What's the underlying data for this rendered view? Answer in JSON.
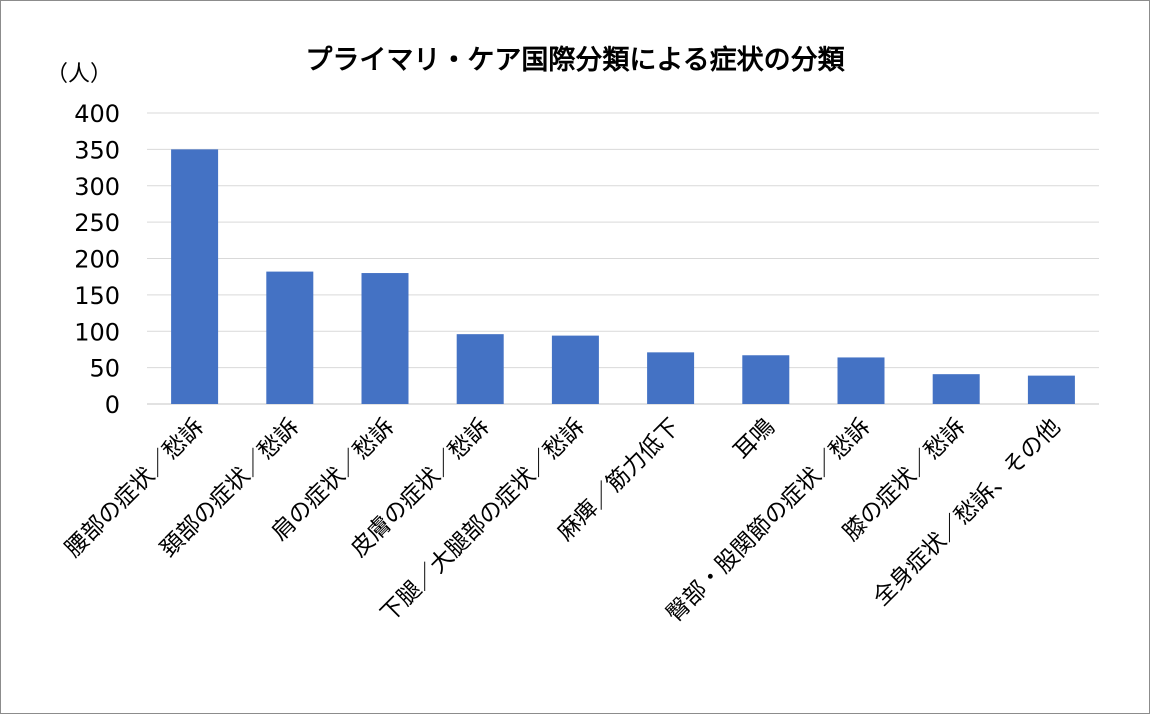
{
  "chart_data": {
    "type": "bar",
    "title": "プライマリ・ケア国際分類による症状の分類",
    "ylabel": "（人）",
    "xlabel": "",
    "ylim": [
      0,
      400
    ],
    "yticks": [
      0,
      50,
      100,
      150,
      200,
      250,
      300,
      350,
      400
    ],
    "categories": [
      "腰部の症状／愁訴",
      "頚部の症状／愁訴",
      "肩の症状／愁訴",
      "皮膚の症状／愁訴",
      "下腿／大腿部の症状／愁訴",
      "麻痺／筋力低下",
      "耳鳴",
      "臀部・股関節の症状／愁訴",
      "膝の症状／愁訴",
      "全身症状／愁訴、その他"
    ],
    "values": [
      350,
      182,
      180,
      96,
      94,
      71,
      67,
      64,
      41,
      39
    ],
    "grid": true,
    "legend": "none",
    "bar_color": "#4472c4",
    "grid_color": "#d9d9d9"
  }
}
